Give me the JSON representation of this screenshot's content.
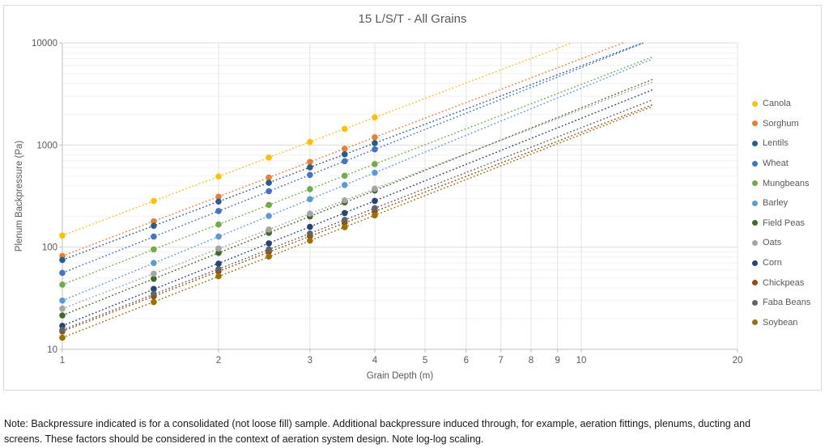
{
  "title": "15 L/S/T - All Grains",
  "note": {
    "line1": "Note: Backpressure indicated is for a consolidated (not loose fill) sample. Additional backpressure induced through, for example, aeration fittings, plenums, ducting and",
    "line2": "screens. These factors should be considered in the context of aeration system design. Note log-log scaling."
  },
  "chart_data": {
    "type": "scatter",
    "title": "15 L/S/T - All Grains",
    "xlabel": "Grain Depth (m)",
    "ylabel": "Plenum Backpressure (Pa)",
    "x_scale": "log",
    "y_scale": "log",
    "xlim": [
      1,
      20
    ],
    "ylim": [
      10,
      10000
    ],
    "x_ticks": [
      1,
      2,
      3,
      4,
      5,
      6,
      7,
      8,
      9,
      10,
      20
    ],
    "y_ticks": [
      10,
      100,
      1000,
      10000
    ],
    "grid": "major-and-minor-log",
    "legend_position": "right",
    "marker": "filled-circle",
    "trendline": {
      "style": "dotted power-law",
      "extends_to_x": 13.7
    },
    "x": [
      1,
      1.5,
      2,
      2.5,
      3,
      3.5,
      4
    ],
    "series": [
      {
        "name": "Canola",
        "color": "#FFC000",
        "values": [
          130,
          283,
          492,
          755,
          1071,
          1441,
          1862
        ]
      },
      {
        "name": "Sorghum",
        "color": "#ED7D31",
        "values": [
          82,
          179,
          312,
          481,
          683,
          920,
          1191
        ]
      },
      {
        "name": "Lentils",
        "color": "#255E91",
        "values": [
          75,
          162,
          280,
          428,
          605,
          811,
          1045
        ]
      },
      {
        "name": "Wheat",
        "color": "#4472C4",
        "values": [
          56,
          127,
          226,
          353,
          510,
          694,
          908
        ]
      },
      {
        "name": "Mungbeans",
        "color": "#70AD47",
        "values": [
          43,
          95,
          167,
          259,
          370,
          501,
          651
        ]
      },
      {
        "name": "Barley",
        "color": "#5B9BD5",
        "values": [
          30,
          70,
          127,
          202,
          295,
          406,
          536
        ]
      },
      {
        "name": "Field Peas",
        "color": "#43682B",
        "values": [
          21.5,
          49,
          88,
          138,
          200,
          274,
          359
        ]
      },
      {
        "name": "Oats",
        "color": "#A5A5A5",
        "values": [
          25,
          55,
          97,
          149,
          213,
          288,
          373
        ]
      },
      {
        "name": "Corn",
        "color": "#264478",
        "values": [
          17,
          39,
          69,
          109,
          158,
          216,
          284
        ]
      },
      {
        "name": "Chickpeas",
        "color": "#9E480E",
        "values": [
          15,
          33,
          58,
          90,
          128,
          173,
          224
        ]
      },
      {
        "name": "Faba Beans",
        "color": "#636363",
        "values": [
          15.5,
          35,
          61,
          95,
          136,
          185,
          241
        ]
      },
      {
        "name": "Soybean",
        "color": "#997300",
        "values": [
          13,
          29,
          52,
          81,
          116,
          157,
          205
        ]
      }
    ],
    "axis_colors": {
      "axis_line": "#bfbfbf",
      "major_grid": "#dedede",
      "minor_grid": "#f2f2f2",
      "tick_text": "#595959"
    }
  }
}
